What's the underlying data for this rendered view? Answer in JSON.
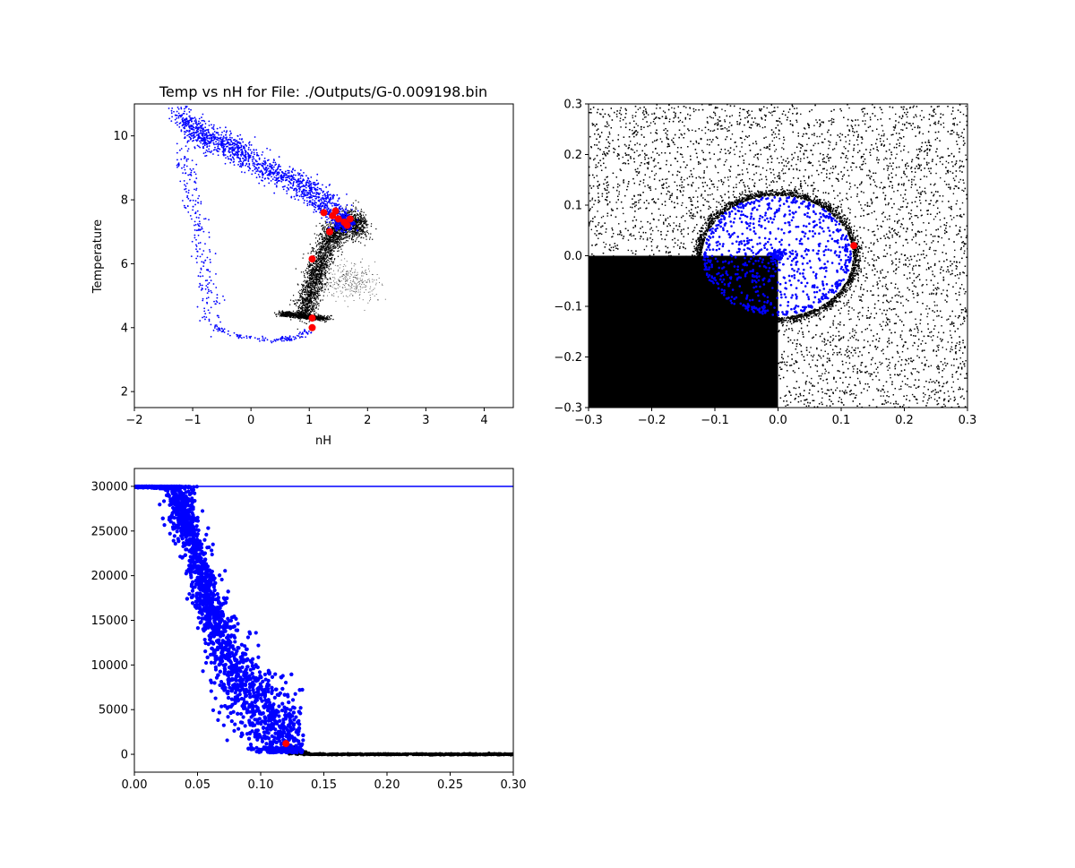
{
  "colors": {
    "gas": "#0000ff",
    "particles": "#000000",
    "highlight": "#ff0000",
    "background": "#ffffff"
  },
  "chart_data": [
    {
      "id": "temp-vs-nh",
      "type": "scatter",
      "title": "Temp vs nH for File: ./Outputs/G-0.009198.bin",
      "xlabel": "nH",
      "ylabel": "Temperature",
      "xlim": [
        -2,
        4.5
      ],
      "ylim": [
        1.5,
        11
      ],
      "xticks": [
        -2,
        -1,
        0,
        1,
        2,
        3,
        4
      ],
      "yticks": [
        2,
        4,
        6,
        8,
        10
      ],
      "grid": false,
      "series": [
        {
          "role": "gas-upper-band",
          "color": "#0000ff",
          "points": [
            [
              -1.2,
              10.7
            ],
            [
              -1.0,
              10.3
            ],
            [
              -0.9,
              10.0
            ],
            [
              -0.7,
              9.9
            ],
            [
              -0.5,
              9.8
            ],
            [
              -0.3,
              9.6
            ],
            [
              -0.1,
              9.4
            ],
            [
              0.2,
              9.0
            ],
            [
              0.5,
              8.7
            ],
            [
              0.8,
              8.5
            ],
            [
              1.0,
              8.3
            ],
            [
              1.2,
              8.0
            ],
            [
              1.4,
              7.7
            ],
            [
              1.6,
              7.5
            ]
          ]
        },
        {
          "role": "gas-left-drop",
          "color": "#0000ff",
          "points": [
            [
              -1.2,
              9.5
            ],
            [
              -1.05,
              8.5
            ],
            [
              -0.95,
              7.5
            ],
            [
              -0.85,
              6.5
            ],
            [
              -0.75,
              5.5
            ],
            [
              -0.7,
              4.8
            ],
            [
              -0.75,
              4.2
            ]
          ]
        },
        {
          "role": "gas-lower-arc",
          "color": "#0000ff",
          "points": [
            [
              -0.75,
              4.1
            ],
            [
              -0.5,
              3.9
            ],
            [
              -0.2,
              3.75
            ],
            [
              0.1,
              3.65
            ],
            [
              0.4,
              3.6
            ],
            [
              0.65,
              3.65
            ],
            [
              0.85,
              3.75
            ],
            [
              1.0,
              3.9
            ]
          ]
        },
        {
          "role": "dense-black-track",
          "color": "#000000",
          "points": [
            [
              0.9,
              4.5
            ],
            [
              1.0,
              5.0
            ],
            [
              1.1,
              5.6
            ],
            [
              1.2,
              6.2
            ],
            [
              1.35,
              6.8
            ],
            [
              1.5,
              7.1
            ],
            [
              1.7,
              7.3
            ],
            [
              1.9,
              7.2
            ]
          ]
        },
        {
          "role": "dense-black-base",
          "color": "#000000",
          "points": [
            [
              0.5,
              4.45
            ],
            [
              0.8,
              4.4
            ],
            [
              1.0,
              4.35
            ],
            [
              1.3,
              4.3
            ]
          ]
        },
        {
          "role": "highlighted",
          "color": "#ff0000",
          "points": [
            [
              1.25,
              7.6
            ],
            [
              1.4,
              7.5
            ],
            [
              1.45,
              7.65
            ],
            [
              1.5,
              7.4
            ],
            [
              1.6,
              7.3
            ],
            [
              1.65,
              7.2
            ],
            [
              1.7,
              7.4
            ],
            [
              1.35,
              7.0
            ],
            [
              1.05,
              6.15
            ],
            [
              1.05,
              4.3
            ],
            [
              1.05,
              4.0
            ]
          ]
        }
      ]
    },
    {
      "id": "xy-position",
      "type": "scatter",
      "xlim": [
        -0.3,
        0.3
      ],
      "ylim": [
        -0.3,
        0.3
      ],
      "xticks": [
        -0.3,
        -0.2,
        -0.1,
        0.0,
        0.1,
        0.2,
        0.3
      ],
      "yticks": [
        -0.3,
        -0.2,
        -0.1,
        0.0,
        0.1,
        0.2,
        0.3
      ],
      "tick_labels": [
        "−0.3",
        "−0.2",
        "−0.1",
        "0.0",
        "0.1",
        "0.2",
        "0.3"
      ],
      "grid": false,
      "regions": [
        {
          "role": "dense-black-quadrant",
          "color": "#000000",
          "x": [
            -0.3,
            0.0
          ],
          "y": [
            -0.3,
            0.0
          ]
        }
      ],
      "bubble": {
        "center": [
          -0.002,
          0.0
        ],
        "radius": 0.12,
        "color": "#0000ff"
      },
      "series": [
        {
          "role": "highlighted",
          "color": "#ff0000",
          "points": [
            [
              0.12,
              0.02
            ]
          ]
        }
      ]
    },
    {
      "id": "profile",
      "type": "scatter",
      "xlim": [
        0.0,
        0.3
      ],
      "ylim": [
        -2000,
        32000
      ],
      "xticks": [
        0.0,
        0.05,
        0.1,
        0.15,
        0.2,
        0.25,
        0.3
      ],
      "xtick_labels": [
        "0.00",
        "0.05",
        "0.10",
        "0.15",
        "0.20",
        "0.25",
        "0.30"
      ],
      "yticks": [
        0,
        5000,
        10000,
        15000,
        20000,
        25000,
        30000
      ],
      "hline": {
        "y": 30000,
        "color": "#0000ff"
      },
      "grid": false,
      "series": [
        {
          "role": "gas",
          "color": "#0000ff",
          "points": [
            [
              0.0,
              30000
            ],
            [
              0.02,
              30000
            ],
            [
              0.03,
              29800
            ],
            [
              0.035,
              28500
            ],
            [
              0.04,
              27000
            ],
            [
              0.045,
              25000
            ],
            [
              0.05,
              21000
            ],
            [
              0.055,
              19000
            ],
            [
              0.06,
              16000
            ],
            [
              0.065,
              14000
            ],
            [
              0.07,
              12000
            ],
            [
              0.08,
              9000
            ],
            [
              0.09,
              7000
            ],
            [
              0.1,
              5000
            ],
            [
              0.11,
              3000
            ],
            [
              0.12,
              1500
            ],
            [
              0.13,
              800
            ]
          ]
        },
        {
          "role": "particles",
          "color": "#000000",
          "points": [
            [
              0.12,
              500
            ],
            [
              0.13,
              300
            ],
            [
              0.14,
              50
            ],
            [
              0.2,
              0
            ],
            [
              0.3,
              0
            ]
          ]
        },
        {
          "role": "highlighted",
          "color": "#ff0000",
          "points": [
            [
              0.12,
              1200
            ]
          ]
        }
      ]
    }
  ]
}
